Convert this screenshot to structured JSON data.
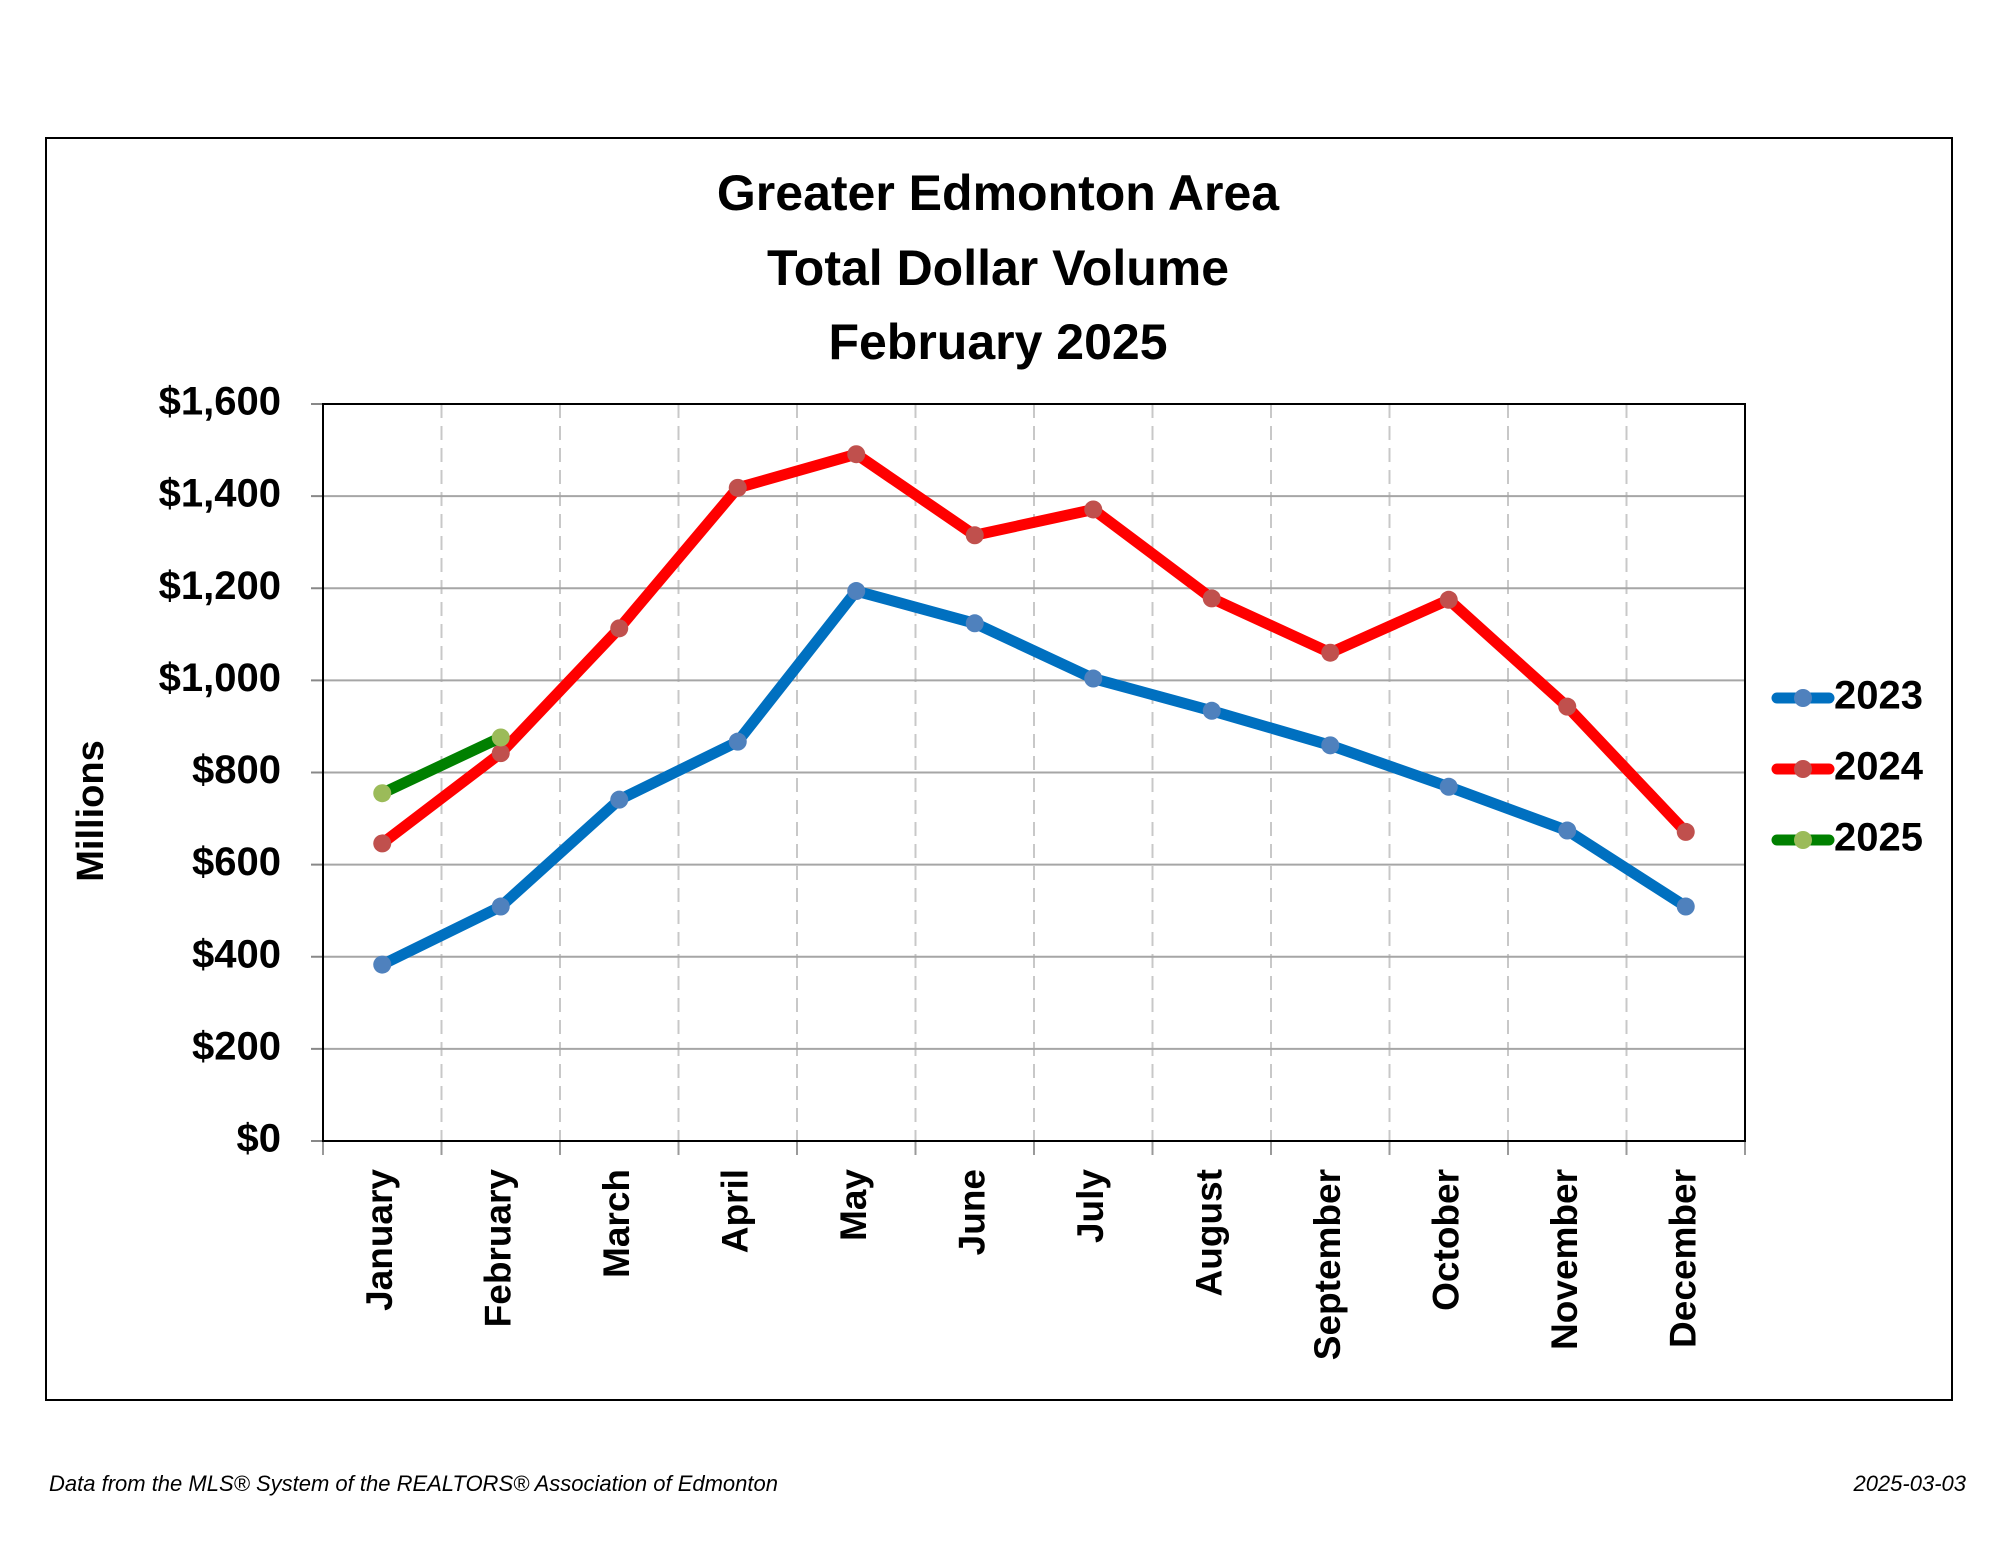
{
  "chart_data": {
    "type": "line",
    "title": [
      "Greater Edmonton Area",
      "Total Dollar Volume",
      "February 2025"
    ],
    "y_label": "Millions",
    "categories": [
      "January",
      "February",
      "March",
      "April",
      "May",
      "June",
      "July",
      "August",
      "September",
      "October",
      "November",
      "December"
    ],
    "series": [
      {
        "name": "2023",
        "color": "#0070c0",
        "marker_color": "#4f81bd",
        "values": [
          383,
          509,
          741,
          867,
          1194,
          1124,
          1004,
          934,
          859,
          769,
          674,
          509
        ]
      },
      {
        "name": "2024",
        "color": "#ff0000",
        "marker_color": "#c0504d",
        "values": [
          646,
          842,
          1113,
          1418,
          1491,
          1315,
          1371,
          1178,
          1060,
          1175,
          943,
          671
        ]
      },
      {
        "name": "2025",
        "color": "#008000",
        "marker_color": "#9bbb59",
        "values": [
          755,
          876,
          null,
          null,
          null,
          null,
          null,
          null,
          null,
          null,
          null,
          null
        ]
      }
    ],
    "ylim": [
      0,
      1600
    ],
    "yticks": [
      {
        "value": 0,
        "label": "$0"
      },
      {
        "value": 200,
        "label": "$200"
      },
      {
        "value": 400,
        "label": "$400"
      },
      {
        "value": 600,
        "label": "$600"
      },
      {
        "value": 800,
        "label": "$800"
      },
      {
        "value": 1000,
        "label": "$1,000"
      },
      {
        "value": 1200,
        "label": "$1,200"
      },
      {
        "value": 1400,
        "label": "$1,400"
      },
      {
        "value": 1600,
        "label": "$1,600"
      }
    ],
    "grid": true,
    "legend": "right",
    "footer_left": "Data from the MLS® System of the REALTORS® Association of Edmonton",
    "footer_right": "2025-03-03"
  }
}
